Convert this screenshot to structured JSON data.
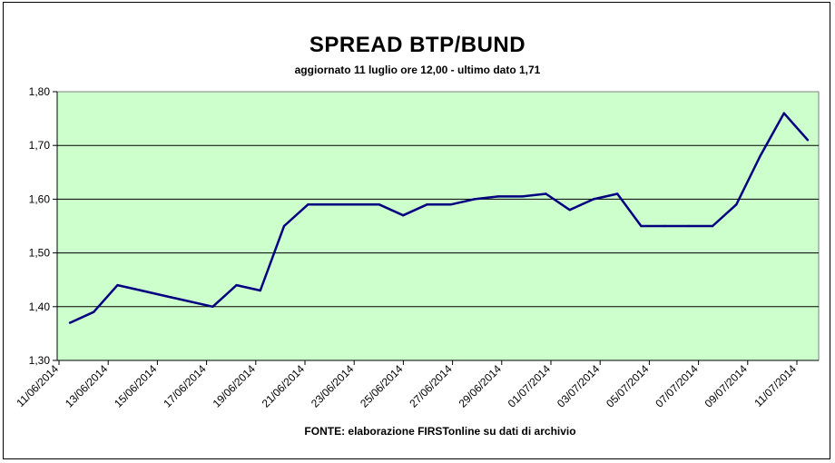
{
  "chart_data": {
    "type": "line",
    "title": "SPREAD BTP/BUND",
    "subtitle": "aggiornato 11 luglio ore 12,00 - ultimo dato 1,71",
    "source": "FONTE:  elaborazione FIRSTonline su dati di archivio",
    "ylim": [
      1.3,
      1.8
    ],
    "yticks": [
      "1,30",
      "1,40",
      "1,50",
      "1,60",
      "1,70",
      "1,80"
    ],
    "xticks": [
      "11/06/2014",
      "13/06/2014",
      "15/06/2014",
      "17/06/2014",
      "19/06/2014",
      "21/06/2014",
      "23/06/2014",
      "25/06/2014",
      "27/06/2014",
      "29/06/2014",
      "01/07/2014",
      "03/07/2014",
      "05/07/2014",
      "07/07/2014",
      "09/07/2014",
      "11/07/2014"
    ],
    "grid": true,
    "colors": {
      "plot_bg": "#ccffcc",
      "line": "#000080",
      "grid": "#000000"
    },
    "series": [
      {
        "values": [
          1.37,
          1.39,
          1.44,
          1.43,
          1.42,
          1.41,
          1.4,
          1.44,
          1.43,
          1.55,
          1.59,
          1.59,
          1.59,
          1.59,
          1.57,
          1.59,
          1.59,
          1.6,
          1.605,
          1.605,
          1.61,
          1.58,
          1.6,
          1.61,
          1.55,
          1.55,
          1.55,
          1.55,
          1.59,
          1.68,
          1.76,
          1.71
        ]
      }
    ]
  }
}
